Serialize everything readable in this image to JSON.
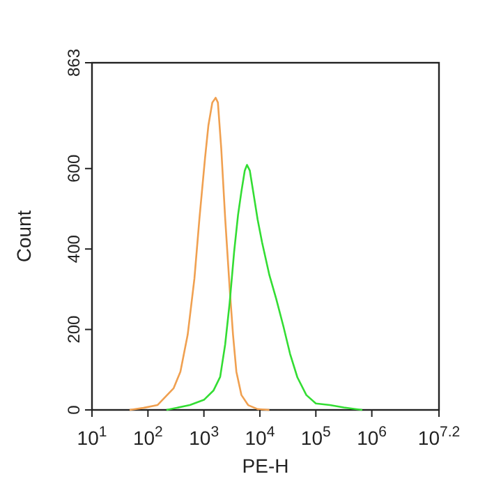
{
  "chart_data": {
    "type": "line",
    "xlabel": "PE-H",
    "ylabel": "Count",
    "log": "x",
    "grid": false,
    "line_style": "solid",
    "xlim": [
      10,
      15848932
    ],
    "xticks": [
      {
        "value": 10,
        "label": "10$^{1}$"
      },
      {
        "value": 100,
        "label": "10$^{2}$"
      },
      {
        "value": 1000,
        "label": "10$^{3}$"
      },
      {
        "value": 10000,
        "label": "10$^{4}$"
      },
      {
        "value": 100000,
        "label": "10$^{5}$"
      },
      {
        "value": 1000000,
        "label": "10$^{6}$"
      },
      {
        "value": 15848932,
        "label": "10$^{7.2}$"
      }
    ],
    "ylim": [
      0,
      863
    ],
    "yticks": [
      0,
      200,
      400,
      600,
      863
    ],
    "series": [
      {
        "color": "#f0a050",
        "x": [
          47,
          83,
          148,
          288,
          380,
          513,
          676,
          832,
          1047,
          1202,
          1413,
          1622,
          1778,
          2042,
          2399,
          2884,
          3311,
          3802,
          4677,
          6166,
          9120,
          14791
        ],
        "values": [
          0,
          5,
          12,
          54,
          95,
          187,
          326,
          476,
          626,
          707,
          764,
          776,
          764,
          649,
          476,
          303,
          187,
          95,
          37,
          12,
          2,
          0
        ]
      },
      {
        "color": "#33dd33",
        "x": [
          214,
          562,
          1000,
          1479,
          1950,
          2399,
          2884,
          3467,
          4074,
          4677,
          5370,
          5888,
          6607,
          7586,
          9120,
          10965,
          14791,
          19498,
          26303,
          34674,
          46774,
          67608,
          100000,
          177828,
          316228,
          676083
        ],
        "values": [
          0,
          12,
          25,
          48,
          82,
          163,
          266,
          393,
          485,
          543,
          595,
          609,
          595,
          543,
          473,
          416,
          335,
          277,
          208,
          139,
          81,
          37,
          16,
          12,
          6,
          0
        ]
      }
    ]
  }
}
